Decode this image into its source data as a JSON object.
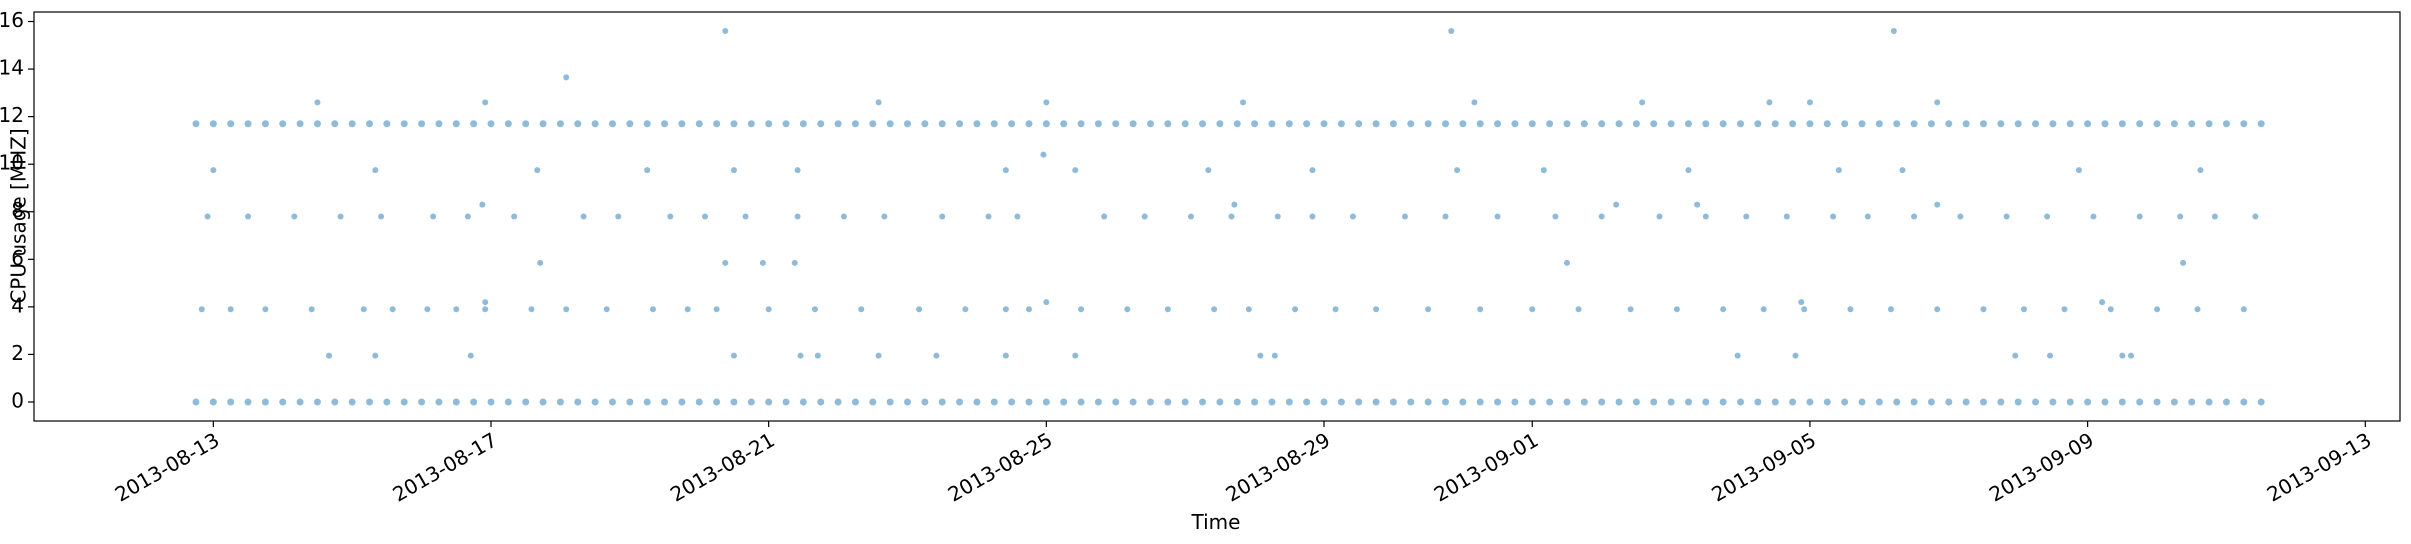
{
  "chart_data": {
    "type": "scatter",
    "xlabel": "Time",
    "ylabel": "CPU usage [MHZ]",
    "xlim": [
      "2013-08-10 10:00",
      "2013-09-13 12:00"
    ],
    "xticks": [
      "2013-08-13",
      "2013-08-17",
      "2013-08-21",
      "2013-08-25",
      "2013-08-29",
      "2013-09-01",
      "2013-09-05",
      "2013-09-09",
      "2013-09-13"
    ],
    "ylim": [
      -0.8,
      16.4
    ],
    "yticks": [
      0,
      2,
      4,
      6,
      8,
      10,
      12,
      14,
      16
    ],
    "alpha": 0.5,
    "series": [
      {
        "color": "#1f77b4",
        "x": [
          "2013-08-12 18:00",
          "2013-08-13 00:00",
          "2013-08-13 06:00",
          "2013-08-13 12:00",
          "2013-08-13 18:00",
          "2013-08-14 00:00",
          "2013-08-14 06:00",
          "2013-08-14 12:00",
          "2013-08-14 18:00",
          "2013-08-15 00:00",
          "2013-08-15 06:00",
          "2013-08-15 12:00",
          "2013-08-15 18:00",
          "2013-08-16 00:00",
          "2013-08-16 06:00",
          "2013-08-16 12:00",
          "2013-08-16 18:00",
          "2013-08-17 00:00",
          "2013-08-17 06:00",
          "2013-08-17 12:00",
          "2013-08-17 18:00",
          "2013-08-18 00:00",
          "2013-08-18 06:00",
          "2013-08-18 12:00",
          "2013-08-18 18:00",
          "2013-08-19 00:00",
          "2013-08-19 06:00",
          "2013-08-19 12:00",
          "2013-08-19 18:00",
          "2013-08-20 00:00",
          "2013-08-20 06:00",
          "2013-08-20 12:00",
          "2013-08-20 18:00",
          "2013-08-21 00:00",
          "2013-08-21 06:00",
          "2013-08-21 12:00",
          "2013-08-21 18:00",
          "2013-08-22 00:00",
          "2013-08-22 06:00",
          "2013-08-22 12:00",
          "2013-08-22 18:00",
          "2013-08-23 00:00",
          "2013-08-23 06:00",
          "2013-08-23 12:00",
          "2013-08-23 18:00",
          "2013-08-24 00:00",
          "2013-08-24 06:00",
          "2013-08-24 12:00",
          "2013-08-24 18:00",
          "2013-08-25 00:00",
          "2013-08-25 06:00",
          "2013-08-25 12:00",
          "2013-08-25 18:00",
          "2013-08-26 00:00",
          "2013-08-26 06:00",
          "2013-08-26 12:00",
          "2013-08-26 18:00",
          "2013-08-27 00:00",
          "2013-08-27 06:00",
          "2013-08-27 12:00",
          "2013-08-27 18:00",
          "2013-08-28 00:00",
          "2013-08-28 06:00",
          "2013-08-28 12:00",
          "2013-08-28 18:00",
          "2013-08-29 00:00",
          "2013-08-29 06:00",
          "2013-08-29 12:00",
          "2013-08-29 18:00",
          "2013-08-30 00:00",
          "2013-08-30 06:00",
          "2013-08-30 12:00",
          "2013-08-30 18:00",
          "2013-08-31 00:00",
          "2013-08-31 06:00",
          "2013-08-31 12:00",
          "2013-08-31 18:00",
          "2013-09-01 00:00",
          "2013-09-01 06:00",
          "2013-09-01 12:00",
          "2013-09-01 18:00",
          "2013-09-02 00:00",
          "2013-09-02 06:00",
          "2013-09-02 12:00",
          "2013-09-02 18:00",
          "2013-09-03 00:00",
          "2013-09-03 06:00",
          "2013-09-03 12:00",
          "2013-09-03 18:00",
          "2013-09-04 00:00",
          "2013-09-04 06:00",
          "2013-09-04 12:00",
          "2013-09-04 18:00",
          "2013-09-05 00:00",
          "2013-09-05 06:00",
          "2013-09-05 12:00",
          "2013-09-05 18:00",
          "2013-09-06 00:00",
          "2013-09-06 06:00",
          "2013-09-06 12:00",
          "2013-09-06 18:00",
          "2013-09-07 00:00",
          "2013-09-07 06:00",
          "2013-09-07 12:00",
          "2013-09-07 18:00",
          "2013-09-08 00:00",
          "2013-09-08 06:00",
          "2013-09-08 12:00",
          "2013-09-08 18:00",
          "2013-09-09 00:00",
          "2013-09-09 06:00",
          "2013-09-09 12:00",
          "2013-09-09 18:00",
          "2013-09-10 00:00",
          "2013-09-10 06:00",
          "2013-09-10 12:00",
          "2013-09-10 18:00",
          "2013-09-11 00:00",
          "2013-09-11 06:00",
          "2013-09-11 12:00"
        ],
        "values": [
          0,
          0,
          0,
          0,
          0,
          0,
          0,
          0,
          0,
          0,
          0,
          0,
          0,
          0,
          0,
          0,
          0,
          0,
          0,
          0,
          0,
          0,
          0,
          0,
          0,
          0,
          0,
          0,
          0,
          0,
          0,
          0,
          0,
          0,
          0,
          0,
          0,
          0,
          0,
          0,
          0,
          0,
          0,
          0,
          0,
          0,
          0,
          0,
          0,
          0,
          0,
          0,
          0,
          0,
          0,
          0,
          0,
          0,
          0,
          0,
          0,
          0,
          0,
          0,
          0,
          0,
          0,
          0,
          0,
          0,
          0,
          0,
          0,
          0,
          0,
          0,
          0,
          0,
          0,
          0,
          0,
          0,
          0,
          0,
          0,
          0,
          0,
          0,
          0,
          0,
          0,
          0,
          0,
          0,
          0,
          0,
          0,
          0,
          0,
          0,
          0,
          0,
          0,
          0,
          0,
          0,
          0,
          0,
          0,
          0,
          0,
          0,
          0,
          0,
          0,
          0,
          0,
          0,
          0,
          0
        ]
      },
      {
        "color": "#1f77b4",
        "x": [
          "2013-08-12 18:00",
          "2013-08-13 00:00",
          "2013-08-13 06:00",
          "2013-08-13 12:00",
          "2013-08-13 18:00",
          "2013-08-14 00:00",
          "2013-08-14 06:00",
          "2013-08-14 12:00",
          "2013-08-14 18:00",
          "2013-08-15 00:00",
          "2013-08-15 06:00",
          "2013-08-15 12:00",
          "2013-08-15 18:00",
          "2013-08-16 00:00",
          "2013-08-16 06:00",
          "2013-08-16 12:00",
          "2013-08-16 18:00",
          "2013-08-17 00:00",
          "2013-08-17 06:00",
          "2013-08-17 12:00",
          "2013-08-17 18:00",
          "2013-08-18 00:00",
          "2013-08-18 06:00",
          "2013-08-18 12:00",
          "2013-08-18 18:00",
          "2013-08-19 00:00",
          "2013-08-19 06:00",
          "2013-08-19 12:00",
          "2013-08-19 18:00",
          "2013-08-20 00:00",
          "2013-08-20 06:00",
          "2013-08-20 12:00",
          "2013-08-20 18:00",
          "2013-08-21 00:00",
          "2013-08-21 06:00",
          "2013-08-21 12:00",
          "2013-08-21 18:00",
          "2013-08-22 00:00",
          "2013-08-22 06:00",
          "2013-08-22 12:00",
          "2013-08-22 18:00",
          "2013-08-23 00:00",
          "2013-08-23 06:00",
          "2013-08-23 12:00",
          "2013-08-23 18:00",
          "2013-08-24 00:00",
          "2013-08-24 06:00",
          "2013-08-24 12:00",
          "2013-08-24 18:00",
          "2013-08-25 00:00",
          "2013-08-25 06:00",
          "2013-08-25 12:00",
          "2013-08-25 18:00",
          "2013-08-26 00:00",
          "2013-08-26 06:00",
          "2013-08-26 12:00",
          "2013-08-26 18:00",
          "2013-08-27 00:00",
          "2013-08-27 06:00",
          "2013-08-27 12:00",
          "2013-08-27 18:00",
          "2013-08-28 00:00",
          "2013-08-28 06:00",
          "2013-08-28 12:00",
          "2013-08-28 18:00",
          "2013-08-29 00:00",
          "2013-08-29 06:00",
          "2013-08-29 12:00",
          "2013-08-29 18:00",
          "2013-08-30 00:00",
          "2013-08-30 06:00",
          "2013-08-30 12:00",
          "2013-08-30 18:00",
          "2013-08-31 00:00",
          "2013-08-31 06:00",
          "2013-08-31 12:00",
          "2013-08-31 18:00",
          "2013-09-01 00:00",
          "2013-09-01 06:00",
          "2013-09-01 12:00",
          "2013-09-01 18:00",
          "2013-09-02 00:00",
          "2013-09-02 06:00",
          "2013-09-02 12:00",
          "2013-09-02 18:00",
          "2013-09-03 00:00",
          "2013-09-03 06:00",
          "2013-09-03 12:00",
          "2013-09-03 18:00",
          "2013-09-04 00:00",
          "2013-09-04 06:00",
          "2013-09-04 12:00",
          "2013-09-04 18:00",
          "2013-09-05 00:00",
          "2013-09-05 06:00",
          "2013-09-05 12:00",
          "2013-09-05 18:00",
          "2013-09-06 00:00",
          "2013-09-06 06:00",
          "2013-09-06 12:00",
          "2013-09-06 18:00",
          "2013-09-07 00:00",
          "2013-09-07 06:00",
          "2013-09-07 12:00",
          "2013-09-07 18:00",
          "2013-09-08 00:00",
          "2013-09-08 06:00",
          "2013-09-08 12:00",
          "2013-09-08 18:00",
          "2013-09-09 00:00",
          "2013-09-09 06:00",
          "2013-09-09 12:00",
          "2013-09-09 18:00",
          "2013-09-10 00:00",
          "2013-09-10 06:00",
          "2013-09-10 12:00",
          "2013-09-10 18:00",
          "2013-09-11 00:00",
          "2013-09-11 06:00",
          "2013-09-11 12:00"
        ],
        "values": [
          11.7,
          11.7,
          11.7,
          11.7,
          11.7,
          11.7,
          11.7,
          11.7,
          11.7,
          11.7,
          11.7,
          11.7,
          11.7,
          11.7,
          11.7,
          11.7,
          11.7,
          11.7,
          11.7,
          11.7,
          11.7,
          11.7,
          11.7,
          11.7,
          11.7,
          11.7,
          11.7,
          11.7,
          11.7,
          11.7,
          11.7,
          11.7,
          11.7,
          11.7,
          11.7,
          11.7,
          11.7,
          11.7,
          11.7,
          11.7,
          11.7,
          11.7,
          11.7,
          11.7,
          11.7,
          11.7,
          11.7,
          11.7,
          11.7,
          11.7,
          11.7,
          11.7,
          11.7,
          11.7,
          11.7,
          11.7,
          11.7,
          11.7,
          11.7,
          11.7,
          11.7,
          11.7,
          11.7,
          11.7,
          11.7,
          11.7,
          11.7,
          11.7,
          11.7,
          11.7,
          11.7,
          11.7,
          11.7,
          11.7,
          11.7,
          11.7,
          11.7,
          11.7,
          11.7,
          11.7,
          11.7,
          11.7,
          11.7,
          11.7,
          11.7,
          11.7,
          11.7,
          11.7,
          11.7,
          11.7,
          11.7,
          11.7,
          11.7,
          11.7,
          11.7,
          11.7,
          11.7,
          11.7,
          11.7,
          11.7,
          11.7,
          11.7,
          11.7,
          11.7,
          11.7,
          11.7,
          11.7,
          11.7,
          11.7,
          11.7,
          11.7,
          11.7,
          11.7,
          11.7,
          11.7,
          11.7,
          11.7,
          11.7,
          11.7,
          11.7
        ]
      },
      {
        "color": "#1f77b4",
        "x": [
          "2013-08-12 20:00",
          "2013-08-13 06:00",
          "2013-08-13 18:00",
          "2013-08-14 10:00",
          "2013-08-15 04:00",
          "2013-08-15 14:00",
          "2013-08-16 02:00",
          "2013-08-16 12:00",
          "2013-08-16 22:00",
          "2013-08-17 14:00",
          "2013-08-18 02:00",
          "2013-08-18 16:00",
          "2013-08-19 08:00",
          "2013-08-19 20:00",
          "2013-08-20 06:00",
          "2013-08-21 00:00",
          "2013-08-21 16:00",
          "2013-08-22 08:00",
          "2013-08-23 04:00",
          "2013-08-23 20:00",
          "2013-08-24 10:00",
          "2013-08-24 18:00",
          "2013-08-25 12:00",
          "2013-08-26 04:00",
          "2013-08-26 18:00",
          "2013-08-27 10:00",
          "2013-08-27 22:00",
          "2013-08-28 14:00",
          "2013-08-29 04:00",
          "2013-08-29 18:00",
          "2013-08-30 12:00",
          "2013-08-31 06:00",
          "2013-09-01 00:00",
          "2013-09-01 16:00",
          "2013-09-02 10:00",
          "2013-09-03 02:00",
          "2013-09-03 18:00",
          "2013-09-04 08:00",
          "2013-09-04 22:00",
          "2013-09-05 14:00",
          "2013-09-06 04:00",
          "2013-09-06 20:00",
          "2013-09-07 12:00",
          "2013-09-08 02:00",
          "2013-09-08 16:00",
          "2013-09-09 08:00",
          "2013-09-10 00:00",
          "2013-09-10 14:00",
          "2013-09-11 06:00",
          "2013-08-12 22:00",
          "2013-08-13 12:00",
          "2013-08-14 04:00",
          "2013-08-14 20:00",
          "2013-08-15 10:00",
          "2013-08-16 04:00",
          "2013-08-16 16:00",
          "2013-08-17 08:00",
          "2013-08-18 08:00",
          "2013-08-18 20:00",
          "2013-08-19 14:00",
          "2013-08-20 02:00",
          "2013-08-20 16:00",
          "2013-08-21 10:00",
          "2013-08-22 02:00",
          "2013-08-22 16:00",
          "2013-08-23 12:00",
          "2013-08-24 04:00",
          "2013-08-24 14:00",
          "2013-08-25 20:00",
          "2013-08-26 10:00",
          "2013-08-27 02:00",
          "2013-08-27 16:00",
          "2013-08-28 08:00",
          "2013-08-28 20:00",
          "2013-08-29 10:00",
          "2013-08-30 04:00",
          "2013-08-30 18:00",
          "2013-08-31 12:00",
          "2013-09-01 08:00",
          "2013-09-02 00:00",
          "2013-09-02 20:00",
          "2013-09-03 12:00",
          "2013-09-04 02:00",
          "2013-09-04 16:00",
          "2013-09-05 08:00",
          "2013-09-05 20:00",
          "2013-09-06 12:00",
          "2013-09-07 04:00",
          "2013-09-07 20:00",
          "2013-09-08 10:00",
          "2013-09-09 02:00",
          "2013-09-09 18:00",
          "2013-09-10 08:00",
          "2013-09-10 20:00",
          "2013-09-11 10:00",
          "2013-08-14 12:00",
          "2013-08-16 22:00",
          "2013-08-22 14:00",
          "2013-08-25 00:00",
          "2013-08-27 20:00",
          "2013-08-31 04:00",
          "2013-09-02 14:00",
          "2013-09-04 10:00",
          "2013-09-05 00:00",
          "2013-09-06 20:00",
          "2013-08-20 09:00",
          "2013-08-30 20:00",
          "2013-09-06 05:00",
          "2013-08-18 02:00",
          "2013-08-24 23:00",
          "2013-08-13 00:00",
          "2013-08-15 08:00",
          "2013-08-17 16:00",
          "2013-08-19 06:00",
          "2013-08-20 12:00",
          "2013-08-21 10:00",
          "2013-08-24 10:00",
          "2013-08-25 10:00",
          "2013-08-27 08:00",
          "2013-08-28 20:00",
          "2013-08-30 22:00",
          "2013-09-01 04:00",
          "2013-09-03 06:00",
          "2013-09-05 10:00",
          "2013-09-06 08:00",
          "2013-09-08 21:00",
          "2013-09-10 15:00",
          "2013-08-17 17:00",
          "2013-08-20 09:00",
          "2013-08-20 22:00",
          "2013-08-21 09:00",
          "2013-09-01 12:00",
          "2013-09-10 09:00",
          "2013-08-14 16:00",
          "2013-08-15 08:00",
          "2013-08-16 17:00",
          "2013-08-20 12:00",
          "2013-08-21 11:00",
          "2013-08-21 17:00",
          "2013-08-22 14:00",
          "2013-08-23 10:00",
          "2013-08-24 10:00",
          "2013-08-25 10:00",
          "2013-08-28 02:00",
          "2013-08-28 07:00",
          "2013-09-03 23:00",
          "2013-09-04 19:00",
          "2013-09-07 23:00",
          "2013-09-08 11:00",
          "2013-09-09 12:00",
          "2013-09-09 15:00",
          "2013-08-16 21:00",
          "2013-08-27 17:00",
          "2013-09-02 05:00",
          "2013-09-03 09:00",
          "2013-09-06 20:00",
          "2013-08-16 22:00",
          "2013-08-25 00:00",
          "2013-09-04 21:00",
          "2013-09-09 05:00"
        ],
        "values": [
          3.9,
          3.9,
          3.9,
          3.9,
          3.9,
          3.9,
          3.9,
          3.9,
          3.9,
          3.9,
          3.9,
          3.9,
          3.9,
          3.9,
          3.9,
          3.9,
          3.9,
          3.9,
          3.9,
          3.9,
          3.9,
          3.9,
          3.9,
          3.9,
          3.9,
          3.9,
          3.9,
          3.9,
          3.9,
          3.9,
          3.9,
          3.9,
          3.9,
          3.9,
          3.9,
          3.9,
          3.9,
          3.9,
          3.9,
          3.9,
          3.9,
          3.9,
          3.9,
          3.9,
          3.9,
          3.9,
          3.9,
          3.9,
          3.9,
          7.8,
          7.8,
          7.8,
          7.8,
          7.8,
          7.8,
          7.8,
          7.8,
          7.8,
          7.8,
          7.8,
          7.8,
          7.8,
          7.8,
          7.8,
          7.8,
          7.8,
          7.8,
          7.8,
          7.8,
          7.8,
          7.8,
          7.8,
          7.8,
          7.8,
          7.8,
          7.8,
          7.8,
          7.8,
          7.8,
          7.8,
          7.8,
          7.8,
          7.8,
          7.8,
          7.8,
          7.8,
          7.8,
          7.8,
          7.8,
          7.8,
          7.8,
          7.8,
          7.8,
          7.8,
          7.8,
          12.6,
          12.6,
          12.6,
          12.6,
          12.6,
          12.6,
          12.6,
          12.6,
          12.6,
          12.6,
          15.6,
          15.6,
          15.6,
          13.65,
          10.4,
          9.75,
          9.75,
          9.75,
          9.75,
          9.75,
          9.75,
          9.75,
          9.75,
          9.75,
          9.75,
          9.75,
          9.75,
          9.75,
          9.75,
          9.75,
          9.75,
          9.75,
          5.85,
          5.85,
          5.85,
          5.85,
          5.85,
          5.85,
          1.95,
          1.95,
          1.95,
          1.95,
          1.95,
          1.95,
          1.95,
          1.95,
          1.95,
          1.95,
          1.95,
          1.95,
          1.95,
          1.95,
          1.95,
          1.95,
          1.95,
          1.95,
          8.3,
          8.3,
          8.3,
          8.3,
          8.3,
          4.2,
          4.2,
          4.2,
          4.2
        ]
      }
    ]
  }
}
